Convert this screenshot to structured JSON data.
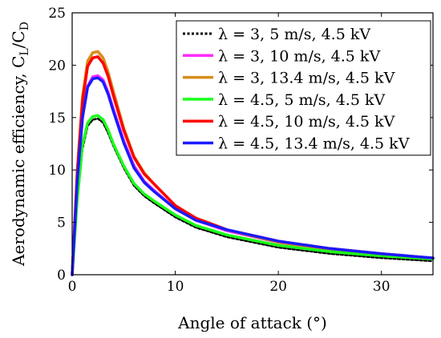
{
  "chart_data": {
    "type": "line",
    "xlabel": "Angle of attack (°)",
    "ylabel": "Aerodynamic efficiency, C_L/C_D",
    "ylabel_main": "Aerodynamic efficiency, C",
    "ylabel_sub_L": "L",
    "ylabel_slash": "/C",
    "ylabel_sub_D": "D",
    "xlim": [
      0,
      35
    ],
    "ylim": [
      0,
      25
    ],
    "x_ticks": [
      0,
      10,
      20,
      30
    ],
    "y_ticks": [
      0,
      5,
      10,
      15,
      20,
      25
    ],
    "grid": false,
    "legend_position": "top-right",
    "series": [
      {
        "name": "λ = 3, 5 m/s, 4.5 kV",
        "color": "#000000",
        "dashed": true,
        "x": [
          0,
          0.5,
          1,
          1.5,
          2,
          2.5,
          3,
          3.5,
          4,
          5,
          6,
          7,
          8,
          10,
          12,
          15,
          20,
          25,
          30,
          35
        ],
        "y": [
          0,
          7,
          12,
          14.2,
          14.8,
          14.9,
          14.5,
          13.5,
          12.3,
          10.2,
          8.5,
          7.5,
          6.8,
          5.5,
          4.5,
          3.6,
          2.6,
          2.0,
          1.6,
          1.3
        ]
      },
      {
        "name": "λ = 3, 10 m/s, 4.5 kV",
        "color": "#ff2bff",
        "dashed": false,
        "x": [
          0,
          0.5,
          1,
          1.5,
          2,
          2.5,
          3,
          3.5,
          4,
          5,
          6,
          7,
          8,
          10,
          12,
          15,
          20,
          25,
          30,
          35
        ],
        "y": [
          0,
          9,
          15,
          18,
          18.9,
          19.0,
          18.6,
          17.4,
          15.8,
          12.8,
          10.4,
          8.9,
          8.0,
          6.3,
          5.2,
          4.2,
          3.1,
          2.4,
          1.9,
          1.6
        ]
      },
      {
        "name": "λ = 3, 13.4 m/s, 4.5 kV",
        "color": "#d98c1a",
        "dashed": false,
        "x": [
          0,
          0.5,
          1,
          1.5,
          2,
          2.5,
          3,
          3.5,
          4,
          5,
          6,
          7,
          8,
          10,
          12,
          15,
          20,
          25,
          30,
          35
        ],
        "y": [
          0,
          10,
          17,
          20.4,
          21.2,
          21.3,
          20.7,
          19.3,
          17.5,
          14.0,
          11.3,
          9.7,
          8.6,
          6.6,
          5.4,
          4.3,
          3.1,
          2.4,
          1.9,
          1.6
        ]
      },
      {
        "name": "λ = 4.5, 5 m/s, 4.5 kV",
        "color": "#1aff1a",
        "dashed": false,
        "x": [
          0,
          0.5,
          1,
          1.5,
          2,
          2.5,
          3,
          3.5,
          4,
          5,
          6,
          7,
          8,
          10,
          12,
          15,
          20,
          25,
          30,
          35
        ],
        "y": [
          0,
          7.2,
          12.4,
          14.5,
          15.1,
          15.2,
          14.8,
          13.8,
          12.5,
          10.4,
          8.7,
          7.7,
          7.0,
          5.7,
          4.7,
          3.8,
          2.8,
          2.2,
          1.8,
          1.5
        ]
      },
      {
        "name": "λ = 4.5, 10 m/s, 4.5 kV",
        "color": "#ff0000",
        "dashed": false,
        "x": [
          0,
          0.5,
          1,
          1.5,
          2,
          2.5,
          3,
          3.5,
          4,
          5,
          6,
          7,
          8,
          10,
          12,
          15,
          20,
          25,
          30,
          35
        ],
        "y": [
          0,
          9.8,
          16.6,
          19.9,
          20.7,
          20.8,
          20.2,
          18.9,
          17.1,
          13.8,
          11.2,
          9.6,
          8.6,
          6.6,
          5.4,
          4.3,
          3.2,
          2.5,
          2.0,
          1.6
        ]
      },
      {
        "name": "λ = 4.5, 13.4 m/s, 4.5 kV",
        "color": "#1a1aff",
        "dashed": false,
        "x": [
          0,
          0.5,
          1,
          1.5,
          2,
          2.5,
          3,
          3.5,
          4,
          5,
          6,
          7,
          8,
          10,
          12,
          15,
          20,
          25,
          30,
          35
        ],
        "y": [
          0,
          9,
          15,
          17.9,
          18.7,
          18.8,
          18.4,
          17.2,
          15.6,
          12.6,
          10.2,
          8.8,
          7.9,
          6.3,
          5.2,
          4.3,
          3.2,
          2.5,
          2.0,
          1.6
        ]
      }
    ]
  }
}
